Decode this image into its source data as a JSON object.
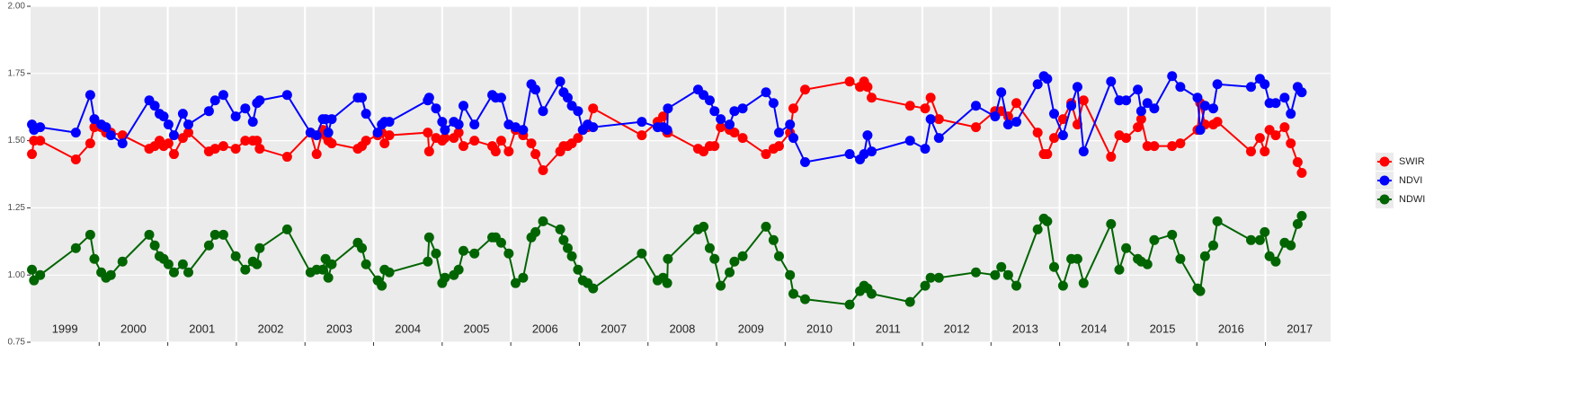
{
  "chart_data": {
    "type": "line",
    "x": [
      1999.02,
      1999.05,
      1999.14,
      1999.66,
      1999.87,
      1999.93,
      2000.03,
      2000.1,
      2000.17,
      2000.34,
      2000.73,
      2000.81,
      2000.88,
      2000.94,
      2001.01,
      2001.09,
      2001.22,
      2001.3,
      2001.6,
      2001.69,
      2001.81,
      2001.99,
      2002.13,
      2002.24,
      2002.3,
      2002.34,
      2002.74,
      2003.08,
      2003.17,
      2003.26,
      2003.3,
      2003.34,
      2003.39,
      2003.77,
      2003.83,
      2003.89,
      2004.06,
      2004.12,
      2004.16,
      2004.23,
      2004.79,
      2004.81,
      2004.91,
      2005.0,
      2005.04,
      2005.17,
      2005.24,
      2005.31,
      2005.47,
      2005.73,
      2005.78,
      2005.86,
      2005.97,
      2006.07,
      2006.18,
      2006.3,
      2006.36,
      2006.47,
      2006.72,
      2006.77,
      2006.83,
      2006.89,
      2006.98,
      2007.05,
      2007.12,
      2007.2,
      2007.91,
      2008.14,
      2008.22,
      2008.28,
      2008.29,
      2008.73,
      2008.81,
      2008.9,
      2008.97,
      2009.06,
      2009.19,
      2009.26,
      2009.38,
      2009.72,
      2009.83,
      2009.91,
      2010.07,
      2010.12,
      2010.29,
      2010.94,
      2011.09,
      2011.15,
      2011.2,
      2011.26,
      2011.82,
      2012.04,
      2012.12,
      2012.24,
      2012.78,
      2013.06,
      2013.15,
      2013.25,
      2013.37,
      2013.68,
      2013.77,
      2013.82,
      2013.92,
      2014.05,
      2014.17,
      2014.26,
      2014.35,
      2014.75,
      2014.87,
      2014.97,
      2015.14,
      2015.19,
      2015.28,
      2015.38,
      2015.64,
      2015.76,
      2016.01,
      2016.05,
      2016.12,
      2016.24,
      2016.3,
      2016.79,
      2016.92,
      2016.99,
      2017.06,
      2017.15,
      2017.28,
      2017.37,
      2017.47,
      2017.53
    ],
    "series": [
      {
        "name": "SWIR",
        "color": "#ff0000",
        "values": [
          1.45,
          1.5,
          1.5,
          1.43,
          1.49,
          1.55,
          1.55,
          1.53,
          1.53,
          1.52,
          1.47,
          1.48,
          1.5,
          1.48,
          1.49,
          1.45,
          1.51,
          1.53,
          1.46,
          1.47,
          1.48,
          1.47,
          1.5,
          1.5,
          1.5,
          1.47,
          1.44,
          1.53,
          1.45,
          1.54,
          1.52,
          1.5,
          1.49,
          1.47,
          1.48,
          1.5,
          1.52,
          1.53,
          1.49,
          1.52,
          1.53,
          1.46,
          1.51,
          1.5,
          1.51,
          1.51,
          1.53,
          1.48,
          1.5,
          1.48,
          1.46,
          1.5,
          1.46,
          1.54,
          1.52,
          1.49,
          1.45,
          1.39,
          1.46,
          1.48,
          1.48,
          1.49,
          1.51,
          1.54,
          1.55,
          1.62,
          1.52,
          1.57,
          1.59,
          1.53,
          1.53,
          1.47,
          1.46,
          1.48,
          1.48,
          1.55,
          1.54,
          1.53,
          1.51,
          1.45,
          1.47,
          1.48,
          1.53,
          1.62,
          1.69,
          1.72,
          1.7,
          1.72,
          1.7,
          1.66,
          1.63,
          1.62,
          1.66,
          1.58,
          1.55,
          1.61,
          1.61,
          1.59,
          1.64,
          1.53,
          1.45,
          1.45,
          1.51,
          1.58,
          1.64,
          1.56,
          1.65,
          1.44,
          1.52,
          1.51,
          1.55,
          1.58,
          1.48,
          1.48,
          1.48,
          1.49,
          1.54,
          1.64,
          1.56,
          1.56,
          1.57,
          1.46,
          1.51,
          1.46,
          1.54,
          1.52,
          1.55,
          1.49,
          1.42,
          1.38
        ]
      },
      {
        "name": "NDVI",
        "color": "#0000ff",
        "values": [
          1.56,
          1.54,
          1.55,
          1.53,
          1.67,
          1.58,
          1.56,
          1.55,
          1.52,
          1.49,
          1.65,
          1.63,
          1.6,
          1.59,
          1.56,
          1.52,
          1.6,
          1.56,
          1.61,
          1.65,
          1.67,
          1.59,
          1.62,
          1.57,
          1.64,
          1.65,
          1.67,
          1.53,
          1.52,
          1.58,
          1.58,
          1.53,
          1.58,
          1.66,
          1.66,
          1.6,
          1.53,
          1.56,
          1.57,
          1.57,
          1.65,
          1.66,
          1.62,
          1.57,
          1.54,
          1.57,
          1.56,
          1.63,
          1.56,
          1.67,
          1.66,
          1.66,
          1.56,
          1.55,
          1.54,
          1.71,
          1.69,
          1.61,
          1.72,
          1.68,
          1.66,
          1.63,
          1.61,
          1.54,
          1.56,
          1.55,
          1.57,
          1.55,
          1.55,
          1.54,
          1.62,
          1.69,
          1.67,
          1.65,
          1.61,
          1.58,
          1.56,
          1.61,
          1.62,
          1.68,
          1.64,
          1.53,
          1.56,
          1.51,
          1.42,
          1.45,
          1.43,
          1.45,
          1.52,
          1.46,
          1.5,
          1.47,
          1.58,
          1.51,
          1.63,
          1.59,
          1.68,
          1.56,
          1.57,
          1.71,
          1.74,
          1.73,
          1.6,
          1.52,
          1.63,
          1.7,
          1.46,
          1.72,
          1.65,
          1.65,
          1.69,
          1.61,
          1.64,
          1.62,
          1.74,
          1.7,
          1.66,
          1.54,
          1.63,
          1.62,
          1.71,
          1.7,
          1.73,
          1.71,
          1.64,
          1.64,
          1.66,
          1.6,
          1.7,
          1.68
        ]
      },
      {
        "name": "NDWI",
        "color": "#006400",
        "values": [
          1.02,
          0.98,
          1.0,
          1.1,
          1.15,
          1.06,
          1.01,
          0.99,
          1.0,
          1.05,
          1.15,
          1.11,
          1.07,
          1.06,
          1.04,
          1.01,
          1.04,
          1.01,
          1.11,
          1.15,
          1.15,
          1.07,
          1.02,
          1.05,
          1.04,
          1.1,
          1.17,
          1.01,
          1.02,
          1.02,
          1.06,
          0.99,
          1.04,
          1.12,
          1.1,
          1.04,
          0.98,
          0.96,
          1.02,
          1.01,
          1.05,
          1.14,
          1.08,
          0.97,
          0.99,
          1.0,
          1.02,
          1.09,
          1.08,
          1.14,
          1.14,
          1.12,
          1.08,
          0.97,
          0.99,
          1.14,
          1.16,
          1.2,
          1.17,
          1.13,
          1.1,
          1.07,
          1.02,
          0.98,
          0.97,
          0.95,
          1.08,
          0.98,
          0.99,
          0.97,
          1.06,
          1.17,
          1.18,
          1.1,
          1.06,
          0.96,
          1.01,
          1.05,
          1.07,
          1.18,
          1.13,
          1.07,
          1.0,
          0.93,
          0.91,
          0.89,
          0.94,
          0.96,
          0.95,
          0.93,
          0.9,
          0.96,
          0.99,
          0.99,
          1.01,
          1.0,
          1.03,
          1.0,
          0.96,
          1.17,
          1.21,
          1.2,
          1.03,
          0.96,
          1.06,
          1.06,
          0.97,
          1.19,
          1.02,
          1.1,
          1.06,
          1.05,
          1.04,
          1.13,
          1.15,
          1.06,
          0.95,
          0.94,
          1.07,
          1.11,
          1.2,
          1.13,
          1.13,
          1.16,
          1.07,
          1.05,
          1.12,
          1.11,
          1.19,
          1.22
        ]
      }
    ],
    "year_labels": [
      1999,
      2000,
      2001,
      2002,
      2003,
      2004,
      2005,
      2006,
      2007,
      2008,
      2009,
      2010,
      2011,
      2012,
      2013,
      2014,
      2015,
      2016,
      2017
    ],
    "xlim": [
      1999,
      2017.95
    ],
    "xticks": [
      2000,
      2001,
      2002,
      2003,
      2004,
      2005,
      2006,
      2007,
      2008,
      2009,
      2010,
      2011,
      2012,
      2013,
      2014,
      2015,
      2016,
      2017
    ],
    "ylim": [
      0.75,
      2.0
    ],
    "yticks": [
      {
        "value": 0.75,
        "label": "0.75"
      },
      {
        "value": 1.0,
        "label": "1.00"
      },
      {
        "value": 1.25,
        "label": "1.25"
      },
      {
        "value": 1.5,
        "label": "1.50"
      },
      {
        "value": 1.75,
        "label": "1.75"
      },
      {
        "value": 2.0,
        "label": "2.00"
      }
    ],
    "grid": true,
    "legend": "right"
  }
}
